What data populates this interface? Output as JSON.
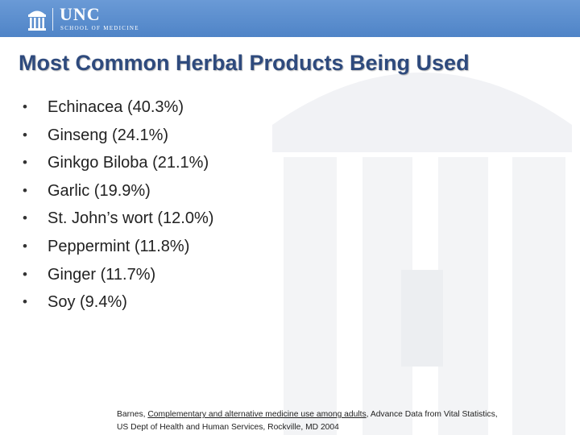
{
  "header": {
    "logo_title": "UNC",
    "logo_subtitle": "SCHOOL OF MEDICINE",
    "background_color": "#5b8fcf"
  },
  "title": "Most Common Herbal Products Being Used",
  "bullet_symbol": "•",
  "bullets": [
    "Echinacea (40.3%)",
    "Ginseng (24.1%)",
    "Ginkgo Biloba (21.1%)",
    "Garlic (19.9%)",
    "St. John’s wort (12.0%)",
    "Peppermint (11.8%)",
    "Ginger (11.7%)",
    "Soy (9.4%)"
  ],
  "citation": {
    "author": "Barnes, ",
    "work_title": "Complementary and alternative medicine use among adults",
    "rest_line1": ", Advance Data from Vital Statistics,",
    "line2": "US Dept of Health and Human Services, Rockville, MD 2004"
  },
  "colors": {
    "title": "#2e4a7d",
    "watermark": "#eef0f3"
  }
}
